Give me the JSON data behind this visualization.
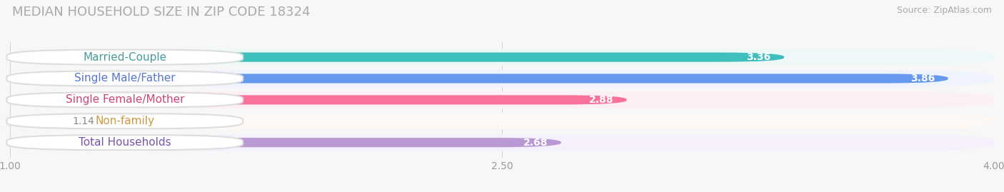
{
  "title": "MEDIAN HOUSEHOLD SIZE IN ZIP CODE 18324",
  "source": "Source: ZipAtlas.com",
  "categories": [
    "Married-Couple",
    "Single Male/Father",
    "Single Female/Mother",
    "Non-family",
    "Total Households"
  ],
  "values": [
    3.36,
    3.86,
    2.88,
    1.14,
    2.68
  ],
  "bar_colors": [
    "#40bfbf",
    "#6699ee",
    "#f8729a",
    "#f5c88a",
    "#b899d4"
  ],
  "label_bg_colors": [
    "#e0f5f5",
    "#ddeeff",
    "#fde8ee",
    "#fdf0e0",
    "#ede0f5"
  ],
  "row_bg_colors": [
    "#eff8f8",
    "#eef3fd",
    "#fdf0f4",
    "#fdf8f4",
    "#f5f0fc"
  ],
  "text_colors": [
    "#4a9a9a",
    "#5577cc",
    "#cc4477",
    "#cc9944",
    "#7755aa"
  ],
  "xlim_min": 1.0,
  "xlim_max": 4.0,
  "xticks": [
    1.0,
    2.5,
    4.0
  ],
  "xtick_labels": [
    "1.00",
    "2.50",
    "4.00"
  ],
  "label_inside_threshold": 2.5,
  "value_label_outside_threshold": 2.3,
  "title_fontsize": 13,
  "source_fontsize": 9,
  "bar_label_fontsize": 10,
  "category_fontsize": 11,
  "tick_fontsize": 10,
  "figure_bg": "#f7f7f7",
  "row_bg": "#ffffff"
}
